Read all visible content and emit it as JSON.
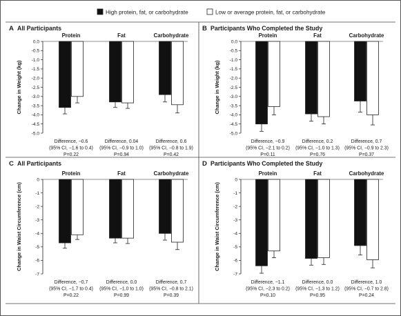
{
  "legend": {
    "high": "High protein, fat, or carbohydrate",
    "low": "Low or average protein, fat, or carbohydrate"
  },
  "colors": {
    "high": "#111111",
    "low": "#ffffff",
    "border": "#222222"
  },
  "chart_data": [
    {
      "type": "bar",
      "panel_letter": "A",
      "title": "All Participants",
      "ylabel": "Change in Weight (kg)",
      "ylim": [
        -5.0,
        0.0
      ],
      "yticks": [
        0.0,
        -0.5,
        -1.0,
        -1.5,
        -2.0,
        -2.5,
        -3.0,
        -3.5,
        -4.0,
        -4.5,
        -5.0
      ],
      "ytick_labels": [
        "0.0",
        "-0.5",
        "-1.0",
        "-1.5",
        "-2.0",
        "-2.5",
        "-3.0",
        "-3.5",
        "-4.0",
        "-4.5",
        "-5.0"
      ],
      "categories": [
        "Protein",
        "Fat",
        "Carbohydrate"
      ],
      "series": [
        {
          "name": "High protein, fat, or carbohydrate",
          "values": [
            -3.6,
            -3.3,
            -2.9
          ],
          "errors": [
            0.35,
            0.3,
            0.4
          ]
        },
        {
          "name": "Low or average protein, fat, or carbohydrate",
          "values": [
            -3.0,
            -3.35,
            -3.45
          ],
          "errors": [
            0.35,
            0.3,
            0.45
          ]
        }
      ],
      "annotations": [
        [
          "Difference, −0.6",
          "(95% CI, −1.6 to 0.4)",
          "P=0.22"
        ],
        [
          "Difference, 0.04",
          "(95% CI, −0.9 to 1.0)",
          "P=0.94"
        ],
        [
          "Difference, 0.6",
          "(95% CI, −0.8 to 1.9)",
          "P=0.42"
        ]
      ]
    },
    {
      "type": "bar",
      "panel_letter": "B",
      "title": "Participants Who Completed the Study",
      "ylabel": "Change in Weight (kg)",
      "ylim": [
        -5.0,
        0.0
      ],
      "yticks": [
        0.0,
        -0.5,
        -1.0,
        -1.5,
        -2.0,
        -2.5,
        -3.0,
        -3.5,
        -4.0,
        -4.5,
        -5.0
      ],
      "ytick_labels": [
        "0.0",
        "-0.5",
        "-1.0",
        "-1.5",
        "-2.0",
        "-2.5",
        "-3.0",
        "-3.5",
        "-4.0",
        "-4.5",
        "-5.0"
      ],
      "categories": [
        "Protein",
        "Fat",
        "Carbohydrate"
      ],
      "series": [
        {
          "name": "High protein, fat, or carbohydrate",
          "values": [
            -4.5,
            -3.95,
            -3.25
          ],
          "errors": [
            0.4,
            0.4,
            0.6
          ]
        },
        {
          "name": "Low or average protein, fat, or carbohydrate",
          "values": [
            -3.55,
            -4.1,
            -4.0
          ],
          "errors": [
            0.45,
            0.4,
            0.55
          ]
        }
      ],
      "annotations": [
        [
          "Difference, −0.9",
          "(95% CI, −2.1 to 0.2)",
          "P=0.11"
        ],
        [
          "Difference, 0.2",
          "(95% CI, −1.0 to 1.3)",
          "P=0.76"
        ],
        [
          "Difference, 0.7",
          "(95% CI, −0.9 to 2.3)",
          "P=0.37"
        ]
      ]
    },
    {
      "type": "bar",
      "panel_letter": "C",
      "title": "All Participants",
      "ylabel": "Change in Waist Circumference (cm)",
      "ylim": [
        -7,
        0
      ],
      "yticks": [
        0,
        -1,
        -2,
        -3,
        -4,
        -5,
        -6,
        -7
      ],
      "ytick_labels": [
        "0",
        "-1",
        "-2",
        "-3",
        "-4",
        "-5",
        "-6",
        "-7"
      ],
      "categories": [
        "Protein",
        "Fat",
        "Carbohydrate"
      ],
      "series": [
        {
          "name": "High protein, fat, or carbohydrate",
          "values": [
            -4.7,
            -4.35,
            -4.0
          ],
          "errors": [
            0.4,
            0.35,
            0.5
          ]
        },
        {
          "name": "Low or average protein, fat, or carbohydrate",
          "values": [
            -4.1,
            -4.35,
            -4.65
          ],
          "errors": [
            0.35,
            0.4,
            0.55
          ]
        }
      ],
      "annotations": [
        [
          "Difference, −0.7",
          "(95% CI, −1.7 to 0.4)",
          "P=0.22"
        ],
        [
          "Difference, 0.0",
          "(95% CI, −1.0 to 1.0)",
          "P=0.99"
        ],
        [
          "Difference, 0.7",
          "(95% CI, −0.8 to 2.1)",
          "P=0.39"
        ]
      ]
    },
    {
      "type": "bar",
      "panel_letter": "D",
      "title": "Participants Who Completed the Study",
      "ylabel": "Change in Waist Circumference (cm)",
      "ylim": [
        -7,
        0
      ],
      "yticks": [
        0,
        -1,
        -2,
        -3,
        -4,
        -5,
        -6,
        -7
      ],
      "ytick_labels": [
        "0",
        "-1",
        "-2",
        "-3",
        "-4",
        "-5",
        "-6",
        "-7"
      ],
      "categories": [
        "Protein",
        "Fat",
        "Carbohydrate"
      ],
      "series": [
        {
          "name": "High protein, fat, or carbohydrate",
          "values": [
            -6.4,
            -5.85,
            -4.9
          ],
          "errors": [
            0.55,
            0.5,
            0.7
          ]
        },
        {
          "name": "Low or average protein, fat, or carbohydrate",
          "values": [
            -5.3,
            -5.8,
            -5.95
          ],
          "errors": [
            0.5,
            0.5,
            0.6
          ]
        }
      ],
      "annotations": [
        [
          "Difference, −1.1",
          "(95% CI, −2.3 to 0.2)",
          "P=0.10"
        ],
        [
          "Difference, 0.0",
          "(95% CI, −1.3 to 1.2)",
          "P=0.95"
        ],
        [
          "Difference, 1.0",
          "(95% CI, −0.7 to 2.8)",
          "P=0.24"
        ]
      ]
    }
  ]
}
